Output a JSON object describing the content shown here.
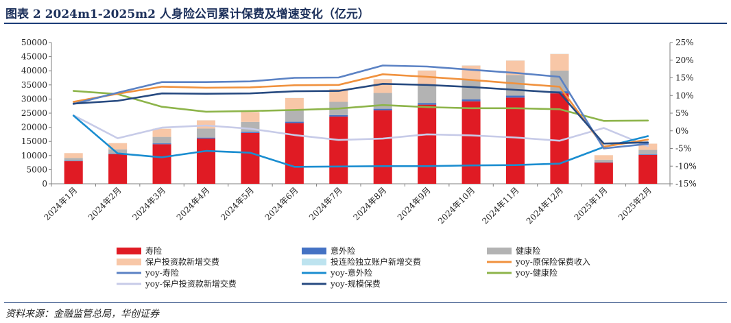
{
  "title": "图表 2   2024m1-2025m2 人身险公司累计保费及增速变化（亿元）",
  "source": "资料来源：金融监管总局，华创证券",
  "colors": {
    "life": "#e01b24",
    "accident": "#4472c4",
    "health": "#b3b3b3",
    "invest": "#f8c7a7",
    "ul": "#bde3ef",
    "yoy_orig": "#f0913d",
    "yoy_life": "#5b82c4",
    "yoy_acc": "#1a8dd0",
    "yoy_health": "#8db44a",
    "yoy_invest": "#c7cbe8",
    "yoy_scale": "#274a80"
  },
  "chart_data": {
    "type": "bar",
    "categories": [
      "2024年1月",
      "2024年2月",
      "2024年3月",
      "2024年4月",
      "2024年5月",
      "2024年6月",
      "2024年7月",
      "2024年8月",
      "2024年9月",
      "2024年10月",
      "2024年11月",
      "2024年12月",
      "2025年1月",
      "2025年2月"
    ],
    "y_left": {
      "ylim": [
        0,
        50000
      ],
      "ticks": [
        "0",
        "5000",
        "10000",
        "15000",
        "20000",
        "25000",
        "30000",
        "35000",
        "40000",
        "45000",
        "50000"
      ]
    },
    "y_right": {
      "ylim": [
        -15,
        25
      ],
      "ticks": [
        "-15%",
        "-10%",
        "-5%",
        "0%",
        "5%",
        "10%",
        "15%",
        "20%",
        "25%"
      ]
    },
    "bar_series": [
      {
        "name": "寿险",
        "values": [
          8000,
          10500,
          14000,
          16000,
          18000,
          21500,
          23800,
          26000,
          28000,
          29200,
          30500,
          32000,
          7500,
          10200
        ]
      },
      {
        "name": "意外险",
        "values": [
          150,
          200,
          300,
          350,
          400,
          450,
          500,
          550,
          600,
          650,
          700,
          750,
          120,
          200
        ]
      },
      {
        "name": "健康险",
        "values": [
          1000,
          1500,
          2300,
          3200,
          3500,
          4200,
          4700,
          5600,
          6500,
          6800,
          7300,
          7300,
          900,
          1600
        ]
      },
      {
        "name": "保户投资款新增交费",
        "values": [
          1700,
          2200,
          2900,
          2900,
          3500,
          4200,
          4500,
          4900,
          5000,
          5200,
          5100,
          5900,
          1600,
          2200
        ]
      },
      {
        "name": "投连险独立账户新增交费",
        "values": [
          10,
          15,
          20,
          25,
          30,
          35,
          40,
          45,
          50,
          55,
          60,
          65,
          10,
          15
        ]
      }
    ],
    "line_series": [
      {
        "name": "yoy-原保险保费收入",
        "values": [
          8.2,
          10.5,
          12.5,
          12.2,
          12.3,
          12.9,
          13.0,
          16.0,
          15.3,
          14.4,
          13.4,
          12.5,
          -4.5,
          -2.5
        ]
      },
      {
        "name": "yoy-寿险",
        "values": [
          7.6,
          10.8,
          13.8,
          13.8,
          14.0,
          15.0,
          15.1,
          18.5,
          18.2,
          17.3,
          16.4,
          15.3,
          -5.0,
          -3.7
        ]
      },
      {
        "name": "yoy-意外险",
        "values": [
          4.3,
          -6.4,
          -7.5,
          -5.7,
          -6.2,
          -10.2,
          -10.1,
          -10.0,
          -10.0,
          -9.8,
          -9.7,
          -9.3,
          -4.6,
          -1.5
        ]
      },
      {
        "name": "yoy-健康险",
        "values": [
          11.3,
          10.4,
          6.8,
          5.4,
          5.6,
          5.9,
          6.3,
          7.3,
          6.7,
          6.4,
          6.4,
          6.1,
          2.8,
          2.9
        ]
      },
      {
        "name": "yoy-保户投资款新增交费",
        "values": [
          4.4,
          -2.1,
          0.9,
          1.5,
          0.6,
          -1.2,
          -2.6,
          -2.2,
          -1.0,
          -1.3,
          -1.9,
          -2.8,
          0.8,
          -4.3
        ]
      },
      {
        "name": "yoy-规模保费",
        "values": [
          7.7,
          8.5,
          10.6,
          10.5,
          10.6,
          11.2,
          11.3,
          13.3,
          13.0,
          12.4,
          11.6,
          10.8,
          -3.6,
          -3.3
        ]
      }
    ],
    "legend": [
      {
        "label": "寿险",
        "kind": "bar",
        "color": "#e01b24"
      },
      {
        "label": "意外险",
        "kind": "bar",
        "color": "#4472c4"
      },
      {
        "label": "健康险",
        "kind": "bar",
        "color": "#b3b3b3"
      },
      {
        "label": "保户投资款新增交费",
        "kind": "bar",
        "color": "#f8c7a7"
      },
      {
        "label": "投连险独立账户新增交费",
        "kind": "bar",
        "color": "#bde3ef"
      },
      {
        "label": "yoy-原保险保费收入",
        "kind": "line",
        "color": "#f0913d"
      },
      {
        "label": "yoy-寿险",
        "kind": "line",
        "color": "#5b82c4"
      },
      {
        "label": "yoy-意外险",
        "kind": "line",
        "color": "#1a8dd0"
      },
      {
        "label": "yoy-健康险",
        "kind": "line",
        "color": "#8db44a"
      },
      {
        "label": "yoy-保户投资款新增交费",
        "kind": "line",
        "color": "#c7cbe8"
      },
      {
        "label": "yoy-规模保费",
        "kind": "line",
        "color": "#274a80"
      }
    ],
    "legend_placement": "bottom",
    "grid": false
  }
}
